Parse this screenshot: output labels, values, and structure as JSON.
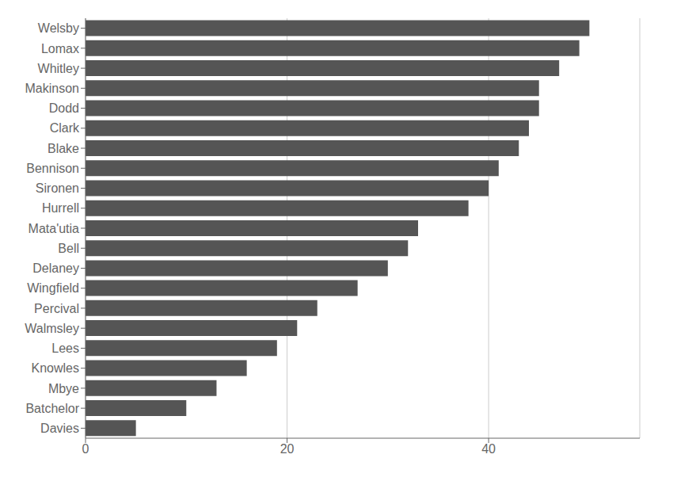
{
  "chart_data": {
    "type": "bar",
    "orientation": "horizontal",
    "categories": [
      "Welsby",
      "Lomax",
      "Whitley",
      "Makinson",
      "Dodd",
      "Clark",
      "Blake",
      "Bennison",
      "Sironen",
      "Hurrell",
      "Mata'utia",
      "Bell",
      "Delaney",
      "Wingfield",
      "Percival",
      "Walmsley",
      "Lees",
      "Knowles",
      "Mbye",
      "Batchelor",
      "Davies"
    ],
    "values": [
      50,
      49,
      47,
      45,
      45,
      44,
      43,
      41,
      40,
      38,
      33,
      32,
      30,
      27,
      23,
      21,
      19,
      16,
      13,
      10,
      5
    ],
    "color": "#555555",
    "xlim": [
      0,
      55
    ],
    "xticks": [
      0,
      20,
      40
    ],
    "grid": true
  }
}
